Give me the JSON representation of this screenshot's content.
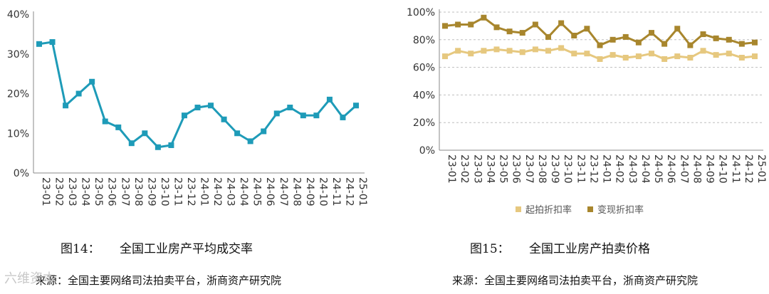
{
  "chart_data": [
    {
      "type": "line",
      "title": "全国工业房产平均成交率",
      "caption_num": "图14：",
      "caption_title": "全国工业房产平均成交率",
      "source": "来源：全国主要网络司法拍卖平台，浙商资产研究院",
      "categories": [
        "23-01",
        "23-02",
        "23-03",
        "23-04",
        "23-05",
        "23-06",
        "23-07",
        "23-08",
        "23-09",
        "23-10",
        "23-11",
        "23-12",
        "24-01",
        "24-02",
        "24-03",
        "24-04",
        "24-05",
        "24-06",
        "24-07",
        "24-08",
        "24-09",
        "24-10",
        "24-11",
        "24-12",
        "25-01"
      ],
      "series": [
        {
          "name": "平均成交率",
          "color": "#1e9bb8",
          "values": [
            32.5,
            33.0,
            17.0,
            20.0,
            23.0,
            13.0,
            11.5,
            7.5,
            10.0,
            6.5,
            7.0,
            14.5,
            16.5,
            17.0,
            13.5,
            10.0,
            8.0,
            10.5,
            15.0,
            16.5,
            14.5,
            14.5,
            18.5,
            14.0,
            17.0
          ]
        }
      ],
      "yticks": [
        "0%",
        "10%",
        "20%",
        "30%",
        "40%"
      ],
      "ylim": [
        0,
        40
      ]
    },
    {
      "type": "line",
      "title": "全国工业房产拍卖价格",
      "caption_num": "图15：",
      "caption_title": "全国工业房产拍卖价格",
      "source": "来源：全国主要网络司法拍卖平台，浙商资产研究院",
      "categories": [
        "23-01",
        "23-02",
        "23-03",
        "23-04",
        "23-05",
        "23-06",
        "23-07",
        "23-08",
        "23-09",
        "23-10",
        "23-11",
        "23-12",
        "24-01",
        "24-02",
        "24-03",
        "24-04",
        "24-05",
        "24-06",
        "24-07",
        "24-08",
        "24-09",
        "24-10",
        "24-11",
        "24-12",
        "25-01"
      ],
      "series": [
        {
          "name": "起拍折扣率",
          "color": "#e6c87f",
          "values": [
            68,
            72,
            70,
            72,
            73,
            72,
            71,
            73,
            72,
            74,
            70,
            70,
            66,
            69,
            67,
            68,
            70,
            66,
            68,
            67,
            72,
            69,
            70,
            67,
            68
          ]
        },
        {
          "name": "变现折扣率",
          "color": "#a8862d",
          "values": [
            90,
            91,
            91,
            96,
            89,
            86,
            85,
            91,
            82,
            92,
            83,
            88,
            76,
            80,
            82,
            78,
            85,
            77,
            88,
            76,
            84,
            81,
            80,
            77,
            78
          ]
        }
      ],
      "yticks": [
        "0%",
        "20%",
        "40%",
        "60%",
        "80%",
        "100%"
      ],
      "ylim": [
        0,
        100
      ]
    }
  ],
  "watermark": "六维资本"
}
